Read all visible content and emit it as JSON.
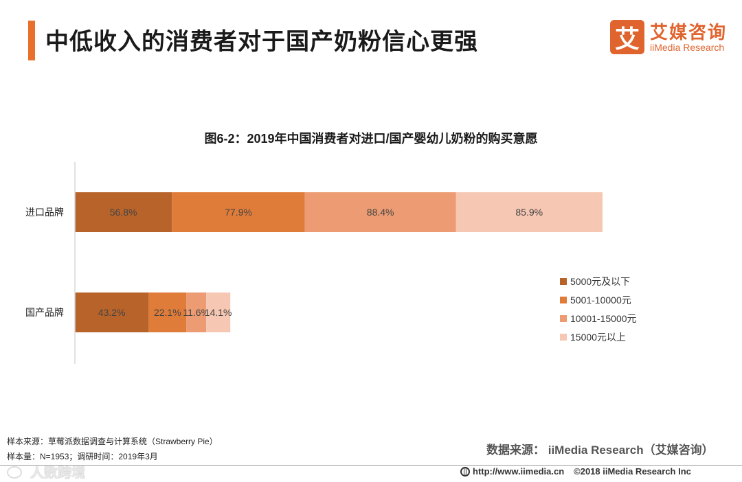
{
  "header": {
    "title": "中低收入的消费者对于国产奶粉信心更强",
    "accent": "#e8702a"
  },
  "logo": {
    "mark": "艾",
    "name_cn": "艾媒咨询",
    "name_en": "iiMedia Research"
  },
  "chart_data": {
    "type": "bar",
    "orientation": "horizontal",
    "stacked": true,
    "title": "图6-2：2019年中国消费者对进口/国产婴幼儿奶粉的购买意愿",
    "categories": [
      "进口品牌",
      "国产品牌"
    ],
    "series": [
      {
        "name": "5000元及以下",
        "values": [
          56.8,
          43.2
        ],
        "labels": [
          "56.8%",
          "43.2%"
        ],
        "color": "#b8632a"
      },
      {
        "name": "5001-10000元",
        "values": [
          77.9,
          22.1
        ],
        "labels": [
          "77.9%",
          "22.1%"
        ],
        "color": "#e07c3a"
      },
      {
        "name": "10001-15000元",
        "values": [
          88.4,
          11.6
        ],
        "labels": [
          "88.4%",
          "11.6%"
        ],
        "color": "#ec9b72"
      },
      {
        "name": "15000元以上",
        "values": [
          85.9,
          14.1
        ],
        "labels": [
          "85.9%",
          "14.1%"
        ],
        "color": "#f6c7b2"
      }
    ],
    "xlim": [
      0,
      309
    ],
    "legend": "right"
  },
  "footer": {
    "sample_source": "样本来源：草莓派数据调查与计算系统（Strawberry   Pie）",
    "sample_size": "样本量：N=1953；调研时间：2019年3月",
    "data_source": "数据来源：  iiMedia Research（艾媒咨询）",
    "url": "http://www.iimedia.cn",
    "copyright": "©2018  iiMedia Research  Inc"
  },
  "watermark": "人数跨境"
}
